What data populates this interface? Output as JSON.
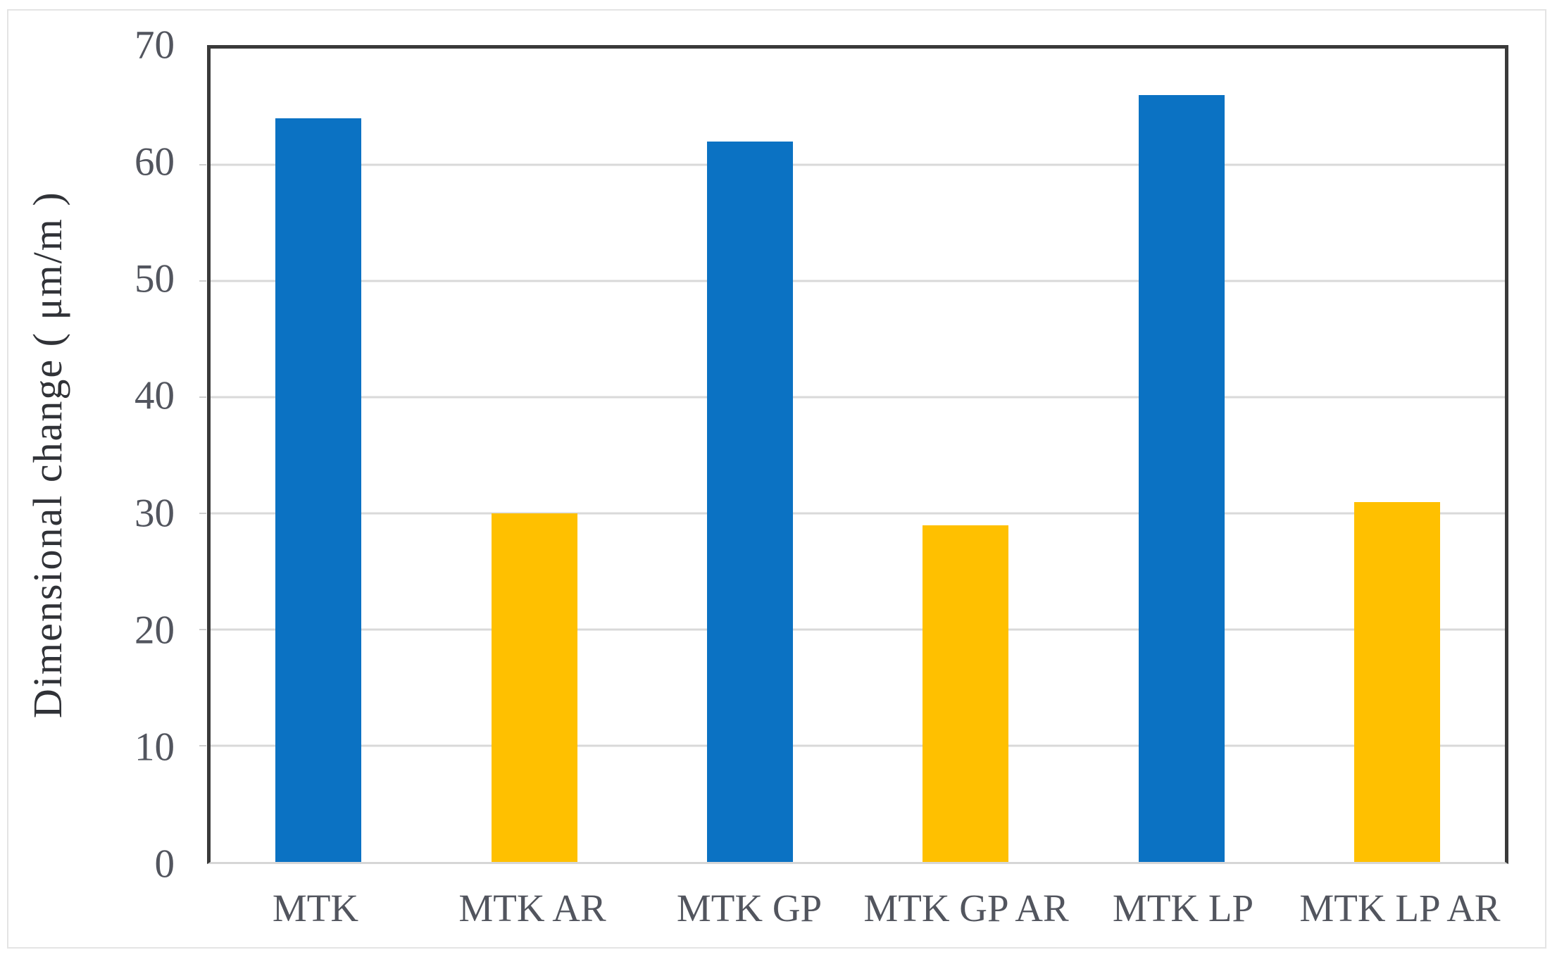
{
  "chart_data": {
    "type": "bar",
    "title": "",
    "xlabel": "",
    "ylabel": "Dimensional change ( μm/m )",
    "categories": [
      "MTK",
      "MTK AR",
      "MTK GP",
      "MTK GP AR",
      "MTK LP",
      "MTK LP AR"
    ],
    "values": [
      64,
      30,
      62,
      29,
      66,
      31
    ],
    "bar_colors": [
      "#0B72C3",
      "#FFC000",
      "#0B72C3",
      "#FFC000",
      "#0B72C3",
      "#FFC000"
    ],
    "ylim": [
      0,
      70
    ],
    "yticks": [
      0,
      10,
      20,
      30,
      40,
      50,
      60,
      70
    ],
    "grid": "horizontal",
    "legend": "none"
  },
  "colors": {
    "bar_blue": "#0B72C3",
    "bar_gold": "#FFC000",
    "gridline": "#D9D9D9",
    "axis_line": "#3A3A3A",
    "baseline": "#D6D6D6",
    "tick_text": "#52555E",
    "axis_title_text": "#303237",
    "figure_border": "#E4E4E4",
    "background": "#FFFFFF"
  }
}
